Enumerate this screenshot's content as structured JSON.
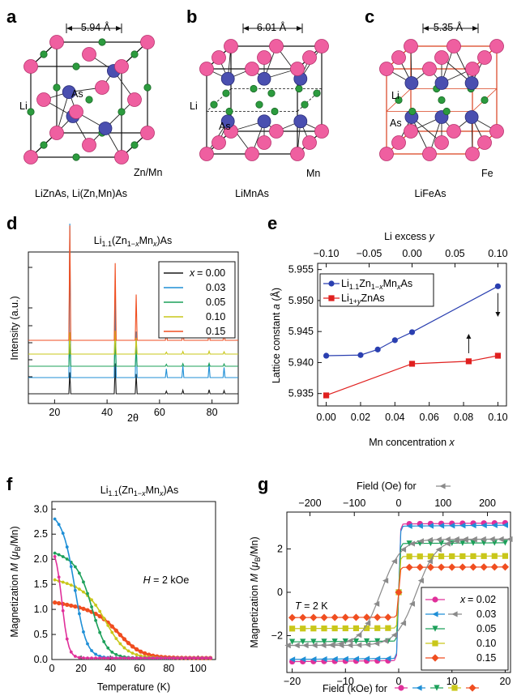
{
  "panel_letters": {
    "a": "a",
    "b": "b",
    "c": "c",
    "d": "d",
    "e": "e",
    "f": "f",
    "g": "g"
  },
  "structures": [
    {
      "id": "a",
      "dimension": "5.94 Å",
      "caption": "LiZnAs, Li(Zn,Mn)As",
      "labels": [
        "Li",
        "As",
        "Zn/Mn"
      ]
    },
    {
      "id": "b",
      "dimension": "6.01 Å",
      "caption": "LiMnAs",
      "labels": [
        "Li",
        "As",
        "Mn"
      ]
    },
    {
      "id": "c",
      "dimension": "5.35 Å",
      "caption": "LiFeAs",
      "labels": [
        "Li",
        "As",
        "Fe"
      ]
    }
  ],
  "colors": {
    "li": "#2c9b3e",
    "as": "#4a4fb0",
    "tm": "#ef5fa0",
    "cell_c": "#d9401e"
  },
  "chart_data": [
    {
      "id": "d",
      "type": "line",
      "title": "Li1.1(Zn1−xMn x)As",
      "xlabel": "2θ",
      "ylabel": "Intensity (a.u.)",
      "xlim": [
        10,
        90
      ],
      "xticks": [
        "20",
        "40",
        "60",
        "80"
      ],
      "legend": {
        "placement": "top-right",
        "symbol": "x",
        "entries": [
          "= 0.00",
          "0.03",
          "0.05",
          "0.10",
          "0.15"
        ]
      },
      "series": [
        {
          "name": "x = 0.00",
          "color": "#1a1a1a"
        },
        {
          "name": "0.03",
          "color": "#1f8fd6"
        },
        {
          "name": "0.05",
          "color": "#1ca05a"
        },
        {
          "name": "0.10",
          "color": "#c9c71a"
        },
        {
          "name": "0.15",
          "color": "#f04e20"
        }
      ],
      "peaks": [
        {
          "two_theta": 25.8,
          "intensity": [
            0.3,
            1.0,
            0.45,
            0.42,
            0.85
          ]
        },
        {
          "two_theta": 43.1,
          "intensity": [
            0.5,
            0.55,
            0.48,
            0.47,
            0.55
          ]
        },
        {
          "two_theta": 51.1,
          "intensity": [
            0.26,
            0.26,
            0.25,
            0.25,
            0.3
          ]
        },
        {
          "two_theta": 62.6,
          "intensity": [
            0.06,
            0.06,
            0.06,
            0.06,
            0.06
          ]
        },
        {
          "two_theta": 68.9,
          "intensity": [
            0.08,
            0.08,
            0.08,
            0.08,
            0.08
          ]
        },
        {
          "two_theta": 78.9,
          "intensity": [
            0.09,
            0.09,
            0.09,
            0.09,
            0.09
          ]
        },
        {
          "two_theta": 84.6,
          "intensity": [
            0.07,
            0.07,
            0.07,
            0.07,
            0.07
          ]
        }
      ]
    },
    {
      "id": "e",
      "type": "line",
      "xlabel": "Mn concentration x",
      "ylabel": "Lattice constant a (Å)",
      "top_xlabel": "Li excess y",
      "xlim": [
        -0.005,
        0.105
      ],
      "ylim": [
        5.933,
        5.956
      ],
      "xticks": [
        "0.00",
        "0.02",
        "0.04",
        "0.06",
        "0.08",
        "0.10"
      ],
      "top_xticks": [
        "−0.10",
        "−0.05",
        "0.00",
        "0.05",
        "0.10"
      ],
      "yticks": [
        "5.935",
        "5.940",
        "5.945",
        "5.950",
        "5.955"
      ],
      "legend": {
        "placement": "top-left"
      },
      "series": [
        {
          "name": "Li1.1Zn1−xMnxAs",
          "color": "#2a3fb0",
          "marker": "circle",
          "x": [
            0.0,
            0.02,
            0.03,
            0.04,
            0.05,
            0.1
          ],
          "y": [
            5.9411,
            5.9412,
            5.9421,
            5.9436,
            5.9449,
            5.9523
          ]
        },
        {
          "name": "Li1+yZnAs",
          "color": "#e0201f",
          "marker": "square",
          "x": [
            0.0,
            0.05,
            0.083,
            0.1
          ],
          "y": [
            5.9347,
            5.9398,
            5.9402,
            5.9411
          ]
        }
      ]
    },
    {
      "id": "f",
      "type": "line",
      "title": "Li1.1(Zn1−xMnx)As",
      "xlabel": "Temperature (K)",
      "ylabel": "Magnetization M (μB/Mn)",
      "annotation": "H = 2 kOe",
      "xlim": [
        0,
        112
      ],
      "ylim": [
        0,
        3.15
      ],
      "xticks": [
        "0",
        "20",
        "40",
        "60",
        "80",
        "100"
      ],
      "yticks": [
        "0.0",
        "0.5",
        "1.0",
        "1.5",
        "2.0",
        "2.5",
        "3.0"
      ],
      "series": [
        {
          "name": "0.02",
          "color": "#e0309a",
          "Ms": 2.25,
          "Tc": 7,
          "w": 2.2
        },
        {
          "name": "0.03",
          "color": "#1f8fd6",
          "Ms": 2.88,
          "Tc": 16,
          "w": 4
        },
        {
          "name": "0.05",
          "color": "#1ca05a",
          "Ms": 2.12,
          "Tc": 28,
          "w": 5
        },
        {
          "name": "0.10",
          "color": "#c9c71a",
          "Ms": 1.58,
          "Tc": 38,
          "w": 7
        },
        {
          "name": "0.15",
          "color": "#f04e20",
          "Ms": 1.12,
          "Tc": 47,
          "w": 8
        }
      ]
    },
    {
      "id": "g",
      "type": "line",
      "xlabel": "Field (kOe) for",
      "top_xlabel": "Field (Oe) for",
      "ylabel": "Magnetization M (μB/Mn)",
      "annotation": "T = 2 K",
      "xlim": [
        -21,
        21
      ],
      "top_xlim": [
        -252,
        252
      ],
      "ylim": [
        -3.7,
        3.7
      ],
      "xticks": [
        "−20",
        "−10",
        "0",
        "10",
        "20"
      ],
      "top_xticks": [
        "−200",
        "−100",
        "0",
        "100",
        "200"
      ],
      "yticks": [
        "−2",
        "0",
        "2"
      ],
      "legend": {
        "placement": "bottom-right",
        "symbol": "x",
        "entries": [
          "= 0.02",
          "0.03",
          "0.05",
          "0.10",
          "0.15"
        ]
      },
      "series": [
        {
          "name": "0.02",
          "color": "#e0309a",
          "Ms": 3.15,
          "marker": "circle"
        },
        {
          "name": "0.03",
          "color": "#1f8fd6",
          "Ms": 3.05,
          "marker": "tri-left"
        },
        {
          "name": "0.05",
          "color": "#1ca05a",
          "Ms": 2.25,
          "marker": "tri-down"
        },
        {
          "name": "0.10",
          "color": "#c9c71a",
          "Ms": 1.65,
          "marker": "square"
        },
        {
          "name": "0.15",
          "color": "#f04e20",
          "Ms": 1.15,
          "marker": "diamond"
        },
        {
          "name": "0.03 (Oe)",
          "color": "#8a8a8a",
          "Ms": 2.45,
          "Hc": 40,
          "marker": "arrow"
        }
      ]
    }
  ]
}
